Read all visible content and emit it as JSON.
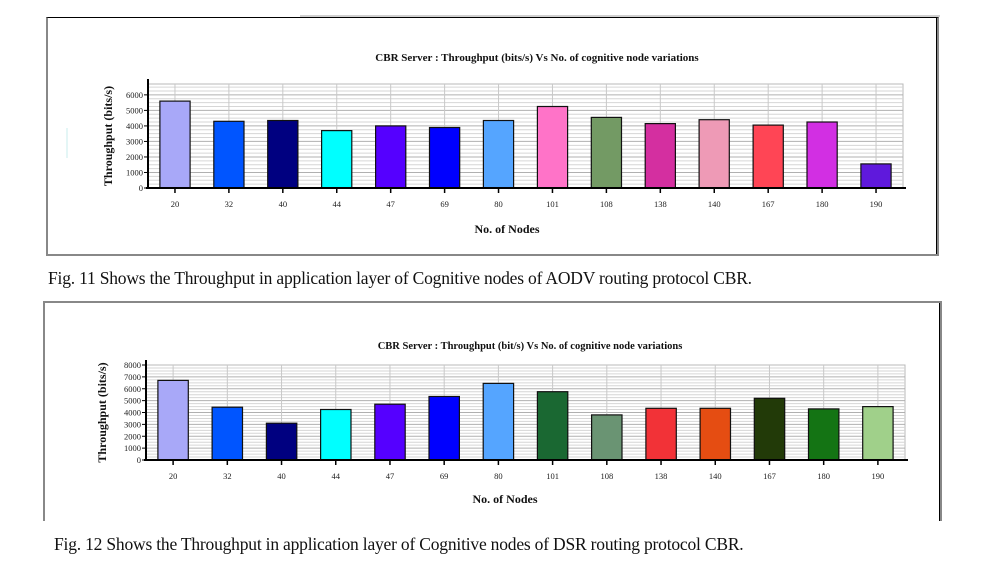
{
  "chart_data": [
    {
      "type": "bar",
      "title": "CBR Server : Throughput (bits/s) Vs No. of cognitive node variations",
      "xlabel": "No. of Nodes",
      "ylabel": "Throughput (bits/s)",
      "categories": [
        "20",
        "32",
        "40",
        "44",
        "47",
        "69",
        "80",
        "101",
        "108",
        "138",
        "140",
        "167",
        "180",
        "190"
      ],
      "values": [
        5600,
        4300,
        4350,
        3700,
        4000,
        3900,
        4350,
        5250,
        4550,
        4150,
        4400,
        4050,
        4250,
        1550
      ],
      "colors": [
        "#a8a8f8",
        "#0055ff",
        "#000080",
        "#00ffff",
        "#5500ff",
        "#0000ff",
        "#55a5ff",
        "#ff73c8",
        "#739a64",
        "#d42fa0",
        "#ee9ab6",
        "#ff4555",
        "#d22fe3",
        "#5f19dc"
      ],
      "yticks": [
        0,
        1000,
        2000,
        3000,
        4000,
        5000,
        6000
      ],
      "ytick_labels": [
        "0",
        "1000",
        "2000",
        "3000",
        "4000",
        "5000",
        "6000"
      ],
      "ylim": [
        0,
        6700
      ],
      "grid": true,
      "caption": "Fig. 11 Shows the Throughput in application layer of Cognitive nodes of AODV routing protocol CBR."
    },
    {
      "type": "bar",
      "title": "CBR Server : Throughput (bit/s) Vs No. of cognitive node variations",
      "xlabel": "No. of Nodes",
      "ylabel": "Throughput (bits/s)",
      "categories": [
        "20",
        "32",
        "40",
        "44",
        "47",
        "69",
        "80",
        "101",
        "108",
        "138",
        "140",
        "167",
        "180",
        "190"
      ],
      "values": [
        6700,
        4450,
        3100,
        4250,
        4700,
        5350,
        6450,
        5750,
        3800,
        4350,
        4350,
        5200,
        4300,
        4500
      ],
      "colors": [
        "#a8a8f8",
        "#0055ff",
        "#000080",
        "#00ffff",
        "#5500ff",
        "#0000ff",
        "#55a5ff",
        "#1a6832",
        "#6a9473",
        "#f23237",
        "#e54d12",
        "#223a08",
        "#147414",
        "#a0d08a"
      ],
      "yticks": [
        0,
        1000,
        2000,
        3000,
        4000,
        5000,
        6000,
        7000,
        8000
      ],
      "ytick_labels": [
        "0",
        "1000",
        "2000",
        "3000",
        "4000",
        "5000",
        "6000",
        "7000",
        "8000"
      ],
      "ylim": [
        0,
        8000
      ],
      "grid": true,
      "caption": "Fig. 12 Shows the Throughput in application layer of Cognitive nodes of DSR routing protocol CBR."
    }
  ]
}
